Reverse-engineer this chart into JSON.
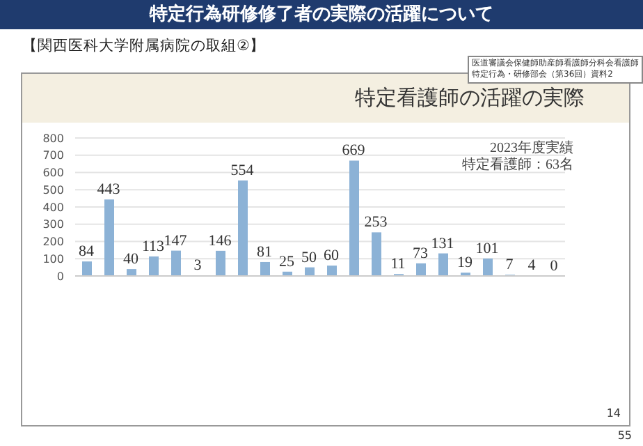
{
  "chart_data": {
    "type": "bar",
    "title": "特定行為研修修了者の実際の活躍について",
    "subtitle": "【関西医科大学附属病院の取組②】",
    "annotations": [
      "医道審議会保健師助産師看護師分科会看護師特定行為・研修部会（第36回）資料2",
      "特定看護師の活躍の実際",
      "2023年度実績",
      "特定看護師：63名",
      "14",
      "55"
    ],
    "categories": [
      null,
      null,
      null,
      null,
      null,
      null,
      null,
      null,
      null,
      null,
      null,
      null,
      null,
      null,
      null,
      null,
      null,
      null,
      null,
      null,
      null,
      null
    ],
    "values": [
      84,
      443,
      40,
      113,
      147,
      3,
      146,
      554,
      81,
      25,
      50,
      60,
      669,
      253,
      11,
      73,
      131,
      19,
      101,
      7,
      4,
      0
    ],
    "color": "#8cb2d6",
    "ylim": [
      0,
      800
    ],
    "yticks": [
      0,
      100,
      200,
      300,
      400,
      500,
      600,
      700,
      800
    ],
    "grid": "y",
    "data_labels": true
  }
}
